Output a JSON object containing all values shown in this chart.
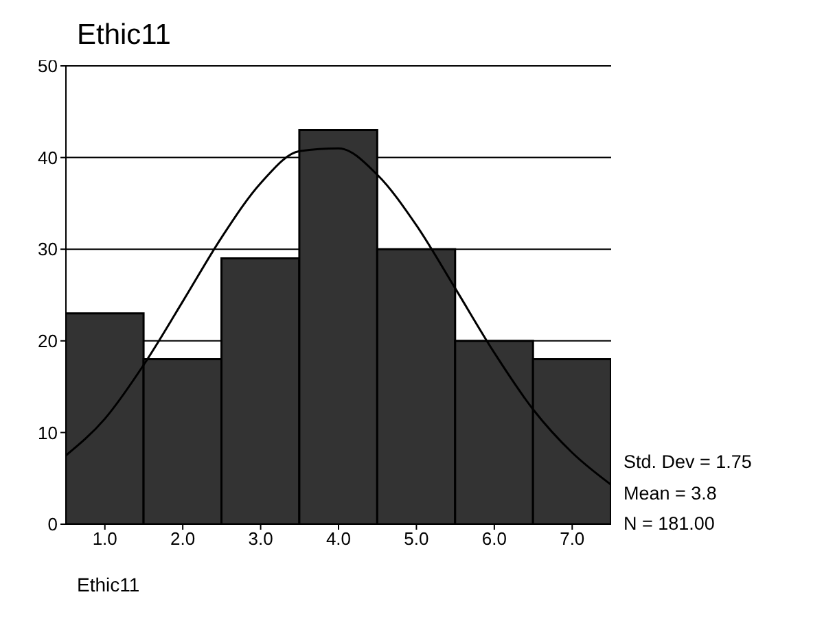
{
  "chart_data": {
    "type": "histogram",
    "title": "Ethic11",
    "xlabel": "Ethic11",
    "bins": [
      0.5,
      1.5,
      2.5,
      3.5,
      4.5,
      5.5,
      6.5,
      7.5
    ],
    "values": [
      23,
      18,
      29,
      43,
      30,
      20,
      18
    ],
    "color": "#333333",
    "series": [
      {
        "type": "line",
        "color": "#000000",
        "x": [
          0.5,
          1,
          1.5,
          2,
          2.5,
          3,
          3.5,
          4,
          4.5,
          5,
          5.5,
          6,
          6.5,
          7,
          7.5
        ],
        "values": [
          7.5,
          11.5,
          17.4,
          24.3,
          31.3,
          37.2,
          40.7,
          41,
          38.1,
          32.6,
          25.7,
          18.7,
          12.5,
          7.8,
          4.3
        ]
      }
    ],
    "xlim": [
      0.5,
      7.5
    ],
    "xticks": [
      {
        "value": 1,
        "label": "1.0"
      },
      {
        "value": 2,
        "label": "2.0"
      },
      {
        "value": 3,
        "label": "3.0"
      },
      {
        "value": 4,
        "label": "4.0"
      },
      {
        "value": 5,
        "label": "5.0"
      },
      {
        "value": 6,
        "label": "6.0"
      },
      {
        "value": 7,
        "label": "7.0"
      }
    ],
    "ylim": [
      0,
      50
    ],
    "yticks": [
      0,
      10,
      20,
      30,
      40,
      50
    ],
    "grid": "y",
    "legend": false,
    "marker": "none",
    "line_style": "solid",
    "annotations": [
      "Std. Dev = 1.75",
      "Mean = 3.8",
      "N = 181.00"
    ]
  }
}
